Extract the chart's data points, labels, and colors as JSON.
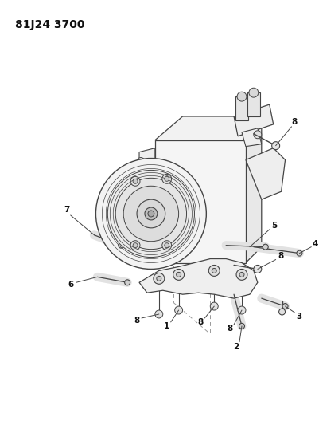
{
  "title": "81J24 3700",
  "bg": "#ffffff",
  "lc": "#444444",
  "dc": "#999999",
  "fig_w": 4.01,
  "fig_h": 5.33,
  "dpi": 100
}
